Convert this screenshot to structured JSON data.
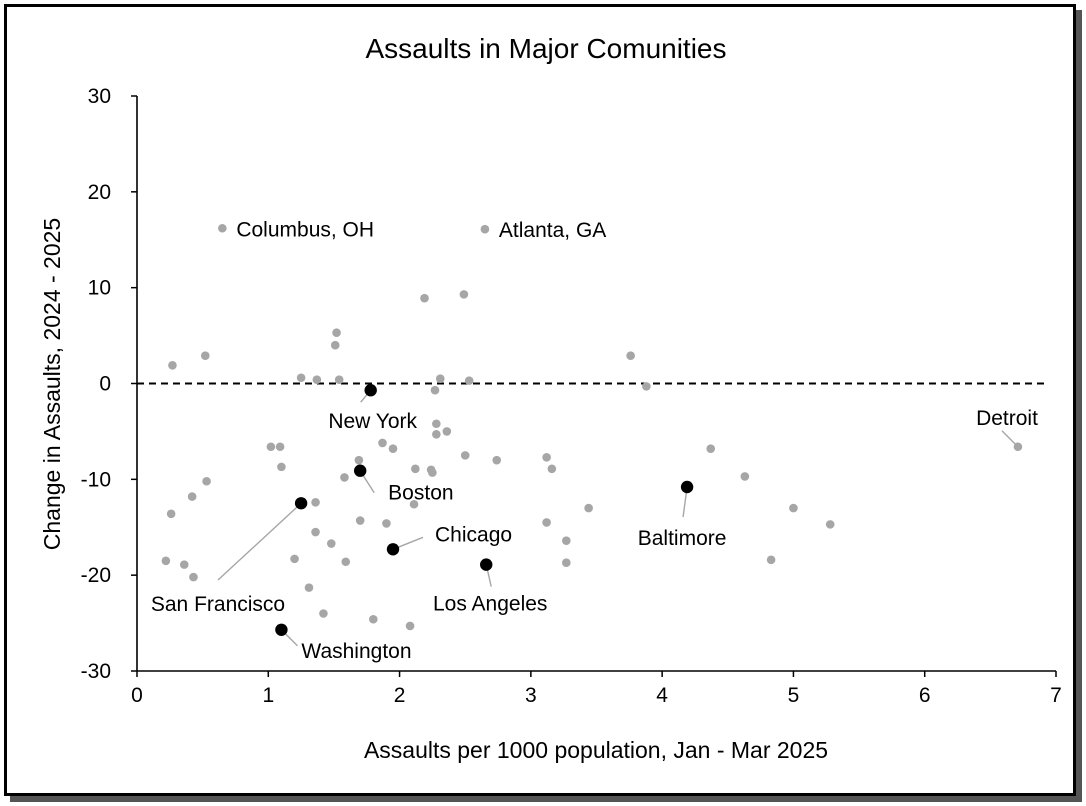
{
  "chart_data": {
    "type": "scatter",
    "title": "Assaults in Major Comunities",
    "xlabel": "Assaults per 1000 population, Jan - Mar 2025",
    "ylabel": "Change in Assaults, 2024 - 2025",
    "xlim": [
      0,
      7
    ],
    "ylim": [
      -30,
      30
    ],
    "xticks": [
      "0",
      "1",
      "2",
      "3",
      "4",
      "5",
      "6",
      "7"
    ],
    "xtick_values": [
      0,
      1,
      2,
      3,
      4,
      5,
      6,
      7
    ],
    "yticks": [
      "30",
      "20",
      "10",
      "0",
      "-10",
      "-20",
      "-30"
    ],
    "ytick_values": [
      30,
      20,
      10,
      0,
      -10,
      -20,
      -30
    ],
    "reference_line": {
      "y": 0,
      "style": "dashed"
    },
    "colors": {
      "background_points": "#a6a6a6",
      "highlight_points": "#000000",
      "leader_lines": "#a6a6a6"
    },
    "background_points": [
      [
        0.27,
        1.9
      ],
      [
        0.52,
        2.9
      ],
      [
        1.25,
        0.6
      ],
      [
        1.37,
        0.4
      ],
      [
        1.54,
        0.4
      ],
      [
        1.52,
        5.3
      ],
      [
        1.51,
        4.0
      ],
      [
        2.19,
        8.9
      ],
      [
        2.49,
        9.3
      ],
      [
        2.27,
        -0.7
      ],
      [
        2.31,
        0.5
      ],
      [
        2.53,
        0.3
      ],
      [
        3.76,
        2.9
      ],
      [
        3.88,
        -0.3
      ],
      [
        0.22,
        -18.5
      ],
      [
        0.26,
        -13.6
      ],
      [
        0.36,
        -18.9
      ],
      [
        0.42,
        -11.8
      ],
      [
        0.43,
        -20.2
      ],
      [
        0.53,
        -10.2
      ],
      [
        1.02,
        -6.6
      ],
      [
        1.09,
        -6.6
      ],
      [
        1.1,
        -8.7
      ],
      [
        1.2,
        -18.3
      ],
      [
        1.31,
        -21.3
      ],
      [
        1.36,
        -12.4
      ],
      [
        1.36,
        -15.5
      ],
      [
        1.42,
        -24.0
      ],
      [
        1.48,
        -16.7
      ],
      [
        1.58,
        -9.8
      ],
      [
        1.59,
        -18.6
      ],
      [
        1.69,
        -8.0
      ],
      [
        1.7,
        -14.3
      ],
      [
        1.8,
        -24.6
      ],
      [
        1.87,
        -6.2
      ],
      [
        1.9,
        -14.6
      ],
      [
        1.95,
        -6.8
      ],
      [
        2.12,
        -8.9
      ],
      [
        2.11,
        -12.6
      ],
      [
        2.08,
        -25.3
      ],
      [
        2.24,
        -9.0
      ],
      [
        2.25,
        -9.3
      ],
      [
        2.28,
        -4.2
      ],
      [
        2.28,
        -5.3
      ],
      [
        2.36,
        -5.0
      ],
      [
        2.5,
        -7.5
      ],
      [
        2.74,
        -8.0
      ],
      [
        3.12,
        -14.5
      ],
      [
        3.12,
        -7.7
      ],
      [
        3.16,
        -8.9
      ],
      [
        3.27,
        -16.4
      ],
      [
        3.27,
        -18.7
      ],
      [
        3.44,
        -13.0
      ],
      [
        4.37,
        -6.8
      ],
      [
        4.63,
        -9.7
      ],
      [
        4.83,
        -18.4
      ],
      [
        5.0,
        -13.0
      ],
      [
        5.28,
        -14.7
      ]
    ],
    "labeled_background_points": [
      {
        "name": "Columbus, OH",
        "x": 0.65,
        "y": 16.2
      },
      {
        "name": "Atlanta, GA",
        "x": 2.65,
        "y": 16.1
      },
      {
        "name": "Detroit",
        "x": 6.71,
        "y": -6.6
      }
    ],
    "highlighted_points": [
      {
        "name": "New York",
        "x": 1.78,
        "y": -0.7
      },
      {
        "name": "Boston",
        "x": 1.7,
        "y": -9.1
      },
      {
        "name": "San Francisco",
        "x": 1.25,
        "y": -12.5
      },
      {
        "name": "Chicago",
        "x": 1.95,
        "y": -17.3
      },
      {
        "name": "Los Angeles",
        "x": 2.66,
        "y": -18.9
      },
      {
        "name": "Baltimore",
        "x": 4.19,
        "y": -10.8
      },
      {
        "name": "Washington",
        "x": 1.1,
        "y": -25.7
      }
    ]
  }
}
